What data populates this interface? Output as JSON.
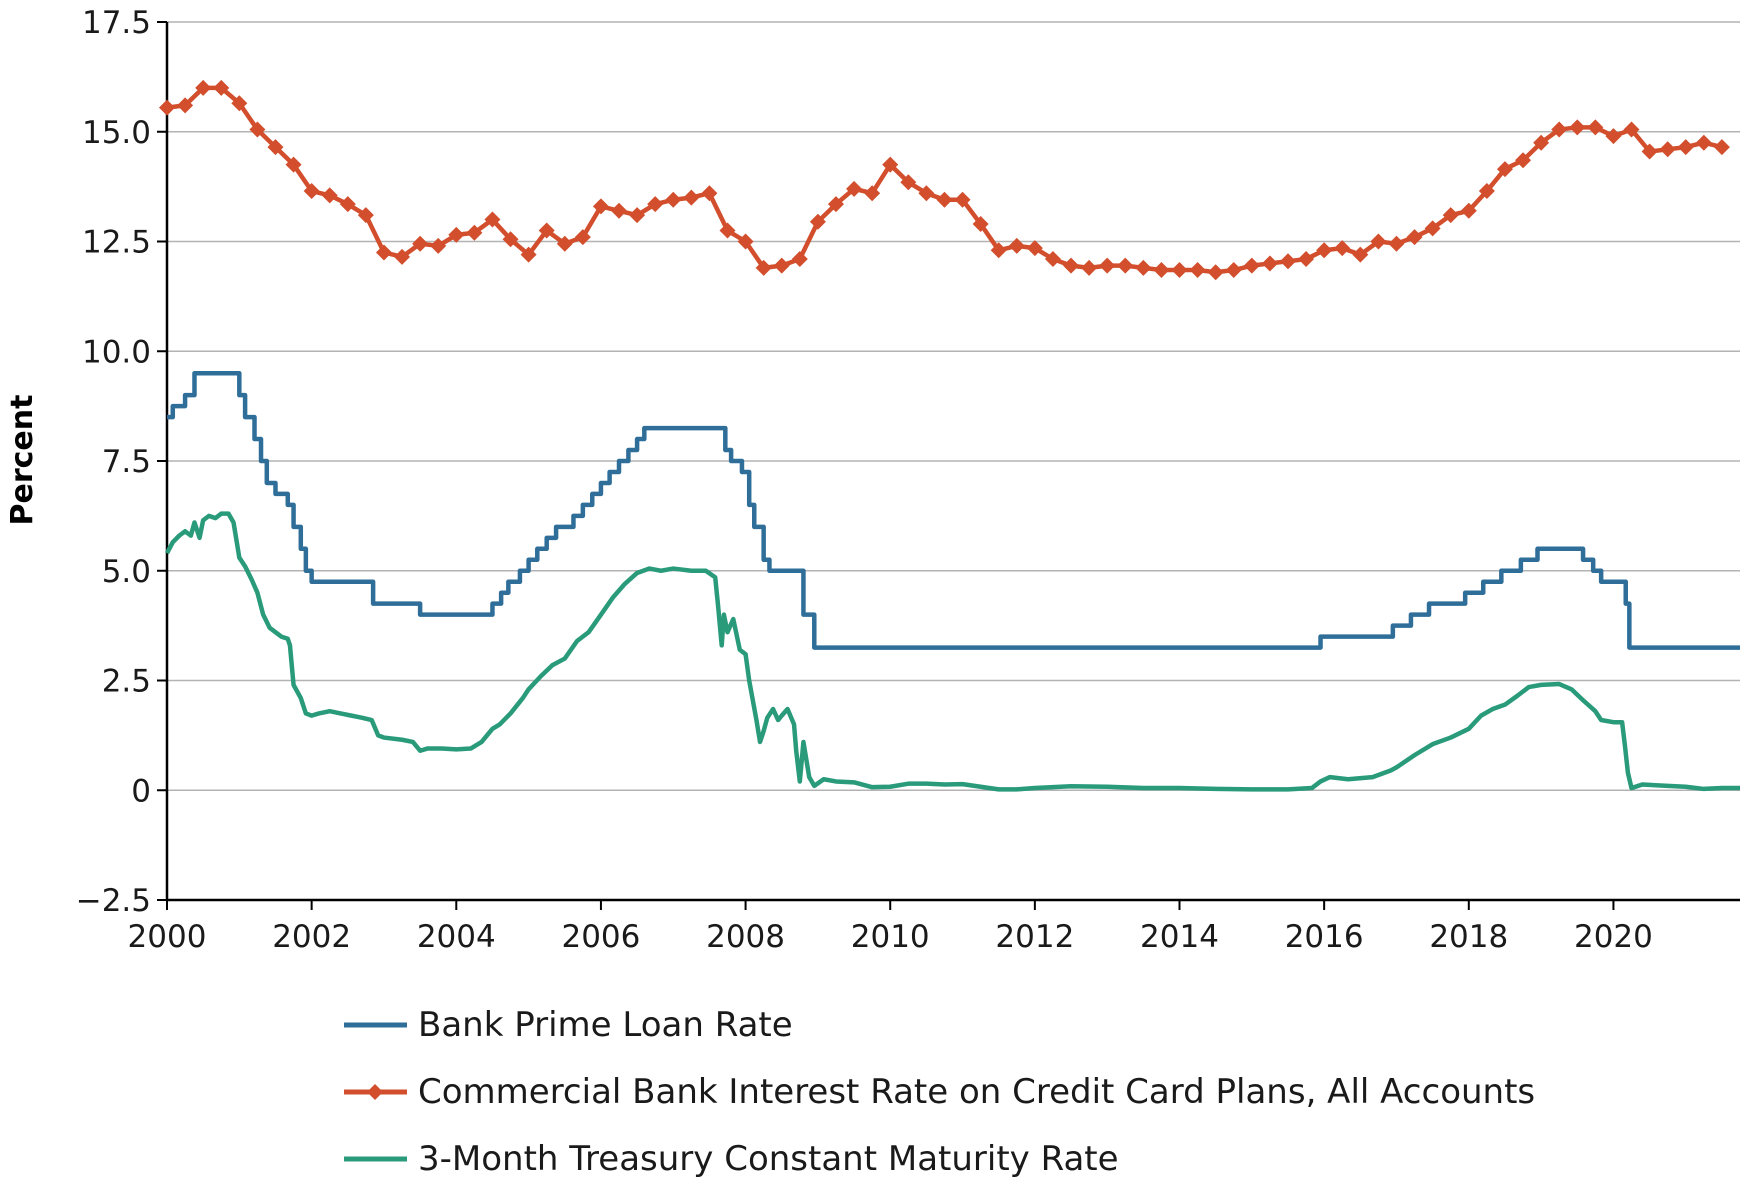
{
  "chart_data": {
    "type": "line",
    "title": "",
    "xlabel": "",
    "ylabel": "Percent",
    "xlim": [
      2000,
      2021.75
    ],
    "ylim": [
      -2.5,
      17.5
    ],
    "grid": "horizontal",
    "legend_position": "bottom",
    "x_ticks": [
      "2000",
      "2002",
      "2004",
      "2006",
      "2008",
      "2010",
      "2012",
      "2014",
      "2016",
      "2018",
      "2020"
    ],
    "y_ticks": [
      "17.5",
      "15.0",
      "12.5",
      "10.0",
      "7.5",
      "5.0",
      "2.5",
      "0",
      "−2.5"
    ],
    "series": [
      {
        "name": "Bank Prime Loan Rate",
        "color": "#2e6e99",
        "style": "step",
        "marker": "none",
        "points": [
          [
            2000.0,
            8.5
          ],
          [
            2000.08,
            8.75
          ],
          [
            2000.25,
            9.0
          ],
          [
            2000.38,
            9.5
          ],
          [
            2001.0,
            9.0
          ],
          [
            2001.08,
            8.5
          ],
          [
            2001.21,
            8.0
          ],
          [
            2001.3,
            7.5
          ],
          [
            2001.38,
            7.0
          ],
          [
            2001.5,
            6.75
          ],
          [
            2001.67,
            6.5
          ],
          [
            2001.75,
            6.0
          ],
          [
            2001.85,
            5.5
          ],
          [
            2001.92,
            5.0
          ],
          [
            2002.0,
            4.75
          ],
          [
            2002.85,
            4.25
          ],
          [
            2003.5,
            4.0
          ],
          [
            2004.5,
            4.25
          ],
          [
            2004.62,
            4.5
          ],
          [
            2004.72,
            4.75
          ],
          [
            2004.88,
            5.0
          ],
          [
            2005.0,
            5.25
          ],
          [
            2005.12,
            5.5
          ],
          [
            2005.25,
            5.75
          ],
          [
            2005.38,
            6.0
          ],
          [
            2005.62,
            6.25
          ],
          [
            2005.75,
            6.5
          ],
          [
            2005.88,
            6.75
          ],
          [
            2006.0,
            7.0
          ],
          [
            2006.12,
            7.25
          ],
          [
            2006.25,
            7.5
          ],
          [
            2006.38,
            7.75
          ],
          [
            2006.5,
            8.0
          ],
          [
            2006.6,
            8.25
          ],
          [
            2007.72,
            7.75
          ],
          [
            2007.8,
            7.5
          ],
          [
            2007.95,
            7.25
          ],
          [
            2008.05,
            6.5
          ],
          [
            2008.12,
            6.0
          ],
          [
            2008.25,
            5.25
          ],
          [
            2008.33,
            5.0
          ],
          [
            2008.8,
            4.0
          ],
          [
            2008.95,
            3.25
          ],
          [
            2015.95,
            3.5
          ],
          [
            2016.95,
            3.75
          ],
          [
            2017.2,
            4.0
          ],
          [
            2017.45,
            4.25
          ],
          [
            2017.95,
            4.5
          ],
          [
            2018.2,
            4.75
          ],
          [
            2018.45,
            5.0
          ],
          [
            2018.72,
            5.25
          ],
          [
            2018.95,
            5.5
          ],
          [
            2019.58,
            5.25
          ],
          [
            2019.72,
            5.0
          ],
          [
            2019.83,
            4.75
          ],
          [
            2020.17,
            4.25
          ],
          [
            2020.22,
            3.25
          ],
          [
            2021.75,
            3.25
          ]
        ]
      },
      {
        "name": "Commercial Bank Interest Rate on Credit Card Plans, All Accounts",
        "color": "#d24e2d",
        "style": "line",
        "marker": "diamond",
        "points": [
          [
            2000.0,
            15.55
          ],
          [
            2000.25,
            15.6
          ],
          [
            2000.5,
            16.0
          ],
          [
            2000.75,
            16.0
          ],
          [
            2001.0,
            15.65
          ],
          [
            2001.25,
            15.05
          ],
          [
            2001.5,
            14.65
          ],
          [
            2001.75,
            14.25
          ],
          [
            2002.0,
            13.65
          ],
          [
            2002.25,
            13.55
          ],
          [
            2002.5,
            13.35
          ],
          [
            2002.75,
            13.1
          ],
          [
            2003.0,
            12.25
          ],
          [
            2003.25,
            12.15
          ],
          [
            2003.5,
            12.45
          ],
          [
            2003.75,
            12.4
          ],
          [
            2004.0,
            12.65
          ],
          [
            2004.25,
            12.7
          ],
          [
            2004.5,
            13.0
          ],
          [
            2004.75,
            12.55
          ],
          [
            2005.0,
            12.2
          ],
          [
            2005.25,
            12.75
          ],
          [
            2005.5,
            12.45
          ],
          [
            2005.75,
            12.6
          ],
          [
            2006.0,
            13.3
          ],
          [
            2006.25,
            13.2
          ],
          [
            2006.5,
            13.1
          ],
          [
            2006.75,
            13.35
          ],
          [
            2007.0,
            13.45
          ],
          [
            2007.25,
            13.5
          ],
          [
            2007.5,
            13.6
          ],
          [
            2007.75,
            12.75
          ],
          [
            2008.0,
            12.5
          ],
          [
            2008.25,
            11.9
          ],
          [
            2008.5,
            11.95
          ],
          [
            2008.75,
            12.1
          ],
          [
            2009.0,
            12.95
          ],
          [
            2009.25,
            13.35
          ],
          [
            2009.5,
            13.7
          ],
          [
            2009.75,
            13.6
          ],
          [
            2010.0,
            14.25
          ],
          [
            2010.25,
            13.85
          ],
          [
            2010.5,
            13.6
          ],
          [
            2010.75,
            13.45
          ],
          [
            2011.0,
            13.45
          ],
          [
            2011.25,
            12.9
          ],
          [
            2011.5,
            12.3
          ],
          [
            2011.75,
            12.4
          ],
          [
            2012.0,
            12.35
          ],
          [
            2012.25,
            12.1
          ],
          [
            2012.5,
            11.95
          ],
          [
            2012.75,
            11.9
          ],
          [
            2013.0,
            11.95
          ],
          [
            2013.25,
            11.95
          ],
          [
            2013.5,
            11.9
          ],
          [
            2013.75,
            11.85
          ],
          [
            2014.0,
            11.85
          ],
          [
            2014.25,
            11.85
          ],
          [
            2014.5,
            11.8
          ],
          [
            2014.75,
            11.85
          ],
          [
            2015.0,
            11.95
          ],
          [
            2015.25,
            12.0
          ],
          [
            2015.5,
            12.05
          ],
          [
            2015.75,
            12.1
          ],
          [
            2016.0,
            12.3
          ],
          [
            2016.25,
            12.35
          ],
          [
            2016.5,
            12.2
          ],
          [
            2016.75,
            12.5
          ],
          [
            2017.0,
            12.45
          ],
          [
            2017.25,
            12.6
          ],
          [
            2017.5,
            12.8
          ],
          [
            2017.75,
            13.1
          ],
          [
            2018.0,
            13.2
          ],
          [
            2018.25,
            13.65
          ],
          [
            2018.5,
            14.15
          ],
          [
            2018.75,
            14.35
          ],
          [
            2019.0,
            14.75
          ],
          [
            2019.25,
            15.05
          ],
          [
            2019.5,
            15.1
          ],
          [
            2019.75,
            15.1
          ],
          [
            2020.0,
            14.9
          ],
          [
            2020.25,
            15.05
          ],
          [
            2020.5,
            14.55
          ],
          [
            2020.75,
            14.6
          ],
          [
            2021.0,
            14.65
          ],
          [
            2021.25,
            14.75
          ],
          [
            2021.5,
            14.65
          ]
        ]
      },
      {
        "name": "3-Month Treasury Constant Maturity Rate",
        "color": "#2a9b7a",
        "style": "line",
        "marker": "none",
        "points": [
          [
            2000.0,
            5.4
          ],
          [
            2000.08,
            5.65
          ],
          [
            2000.17,
            5.8
          ],
          [
            2000.25,
            5.9
          ],
          [
            2000.33,
            5.8
          ],
          [
            2000.38,
            6.1
          ],
          [
            2000.45,
            5.75
          ],
          [
            2000.5,
            6.15
          ],
          [
            2000.58,
            6.25
          ],
          [
            2000.67,
            6.2
          ],
          [
            2000.75,
            6.3
          ],
          [
            2000.85,
            6.3
          ],
          [
            2000.92,
            6.1
          ],
          [
            2001.0,
            5.3
          ],
          [
            2001.08,
            5.1
          ],
          [
            2001.17,
            4.8
          ],
          [
            2001.25,
            4.5
          ],
          [
            2001.33,
            4.0
          ],
          [
            2001.42,
            3.7
          ],
          [
            2001.5,
            3.6
          ],
          [
            2001.58,
            3.5
          ],
          [
            2001.67,
            3.45
          ],
          [
            2001.7,
            3.3
          ],
          [
            2001.75,
            2.4
          ],
          [
            2001.85,
            2.1
          ],
          [
            2001.92,
            1.75
          ],
          [
            2002.0,
            1.7
          ],
          [
            2002.1,
            1.75
          ],
          [
            2002.25,
            1.8
          ],
          [
            2002.4,
            1.75
          ],
          [
            2002.55,
            1.7
          ],
          [
            2002.7,
            1.65
          ],
          [
            2002.83,
            1.6
          ],
          [
            2002.92,
            1.25
          ],
          [
            2003.0,
            1.2
          ],
          [
            2003.25,
            1.15
          ],
          [
            2003.4,
            1.1
          ],
          [
            2003.5,
            0.9
          ],
          [
            2003.6,
            0.95
          ],
          [
            2003.8,
            0.95
          ],
          [
            2004.0,
            0.93
          ],
          [
            2004.2,
            0.95
          ],
          [
            2004.35,
            1.1
          ],
          [
            2004.5,
            1.4
          ],
          [
            2004.6,
            1.5
          ],
          [
            2004.75,
            1.75
          ],
          [
            2004.92,
            2.1
          ],
          [
            2005.0,
            2.3
          ],
          [
            2005.17,
            2.6
          ],
          [
            2005.33,
            2.85
          ],
          [
            2005.5,
            3.0
          ],
          [
            2005.67,
            3.4
          ],
          [
            2005.83,
            3.6
          ],
          [
            2006.0,
            4.0
          ],
          [
            2006.17,
            4.4
          ],
          [
            2006.33,
            4.7
          ],
          [
            2006.5,
            4.95
          ],
          [
            2006.67,
            5.05
          ],
          [
            2006.83,
            5.0
          ],
          [
            2007.0,
            5.05
          ],
          [
            2007.25,
            5.0
          ],
          [
            2007.45,
            5.0
          ],
          [
            2007.58,
            4.85
          ],
          [
            2007.62,
            4.2
          ],
          [
            2007.67,
            3.3
          ],
          [
            2007.7,
            4.0
          ],
          [
            2007.75,
            3.6
          ],
          [
            2007.83,
            3.9
          ],
          [
            2007.92,
            3.2
          ],
          [
            2008.0,
            3.1
          ],
          [
            2008.05,
            2.5
          ],
          [
            2008.15,
            1.6
          ],
          [
            2008.2,
            1.1
          ],
          [
            2008.25,
            1.35
          ],
          [
            2008.3,
            1.65
          ],
          [
            2008.38,
            1.85
          ],
          [
            2008.45,
            1.6
          ],
          [
            2008.5,
            1.7
          ],
          [
            2008.58,
            1.85
          ],
          [
            2008.67,
            1.5
          ],
          [
            2008.7,
            0.9
          ],
          [
            2008.75,
            0.2
          ],
          [
            2008.8,
            1.1
          ],
          [
            2008.88,
            0.3
          ],
          [
            2008.95,
            0.1
          ],
          [
            2009.08,
            0.25
          ],
          [
            2009.25,
            0.2
          ],
          [
            2009.5,
            0.18
          ],
          [
            2009.75,
            0.07
          ],
          [
            2010.0,
            0.08
          ],
          [
            2010.25,
            0.15
          ],
          [
            2010.5,
            0.15
          ],
          [
            2010.75,
            0.13
          ],
          [
            2011.0,
            0.14
          ],
          [
            2011.25,
            0.08
          ],
          [
            2011.5,
            0.02
          ],
          [
            2011.75,
            0.02
          ],
          [
            2012.0,
            0.05
          ],
          [
            2012.5,
            0.09
          ],
          [
            2013.0,
            0.08
          ],
          [
            2013.5,
            0.05
          ],
          [
            2014.0,
            0.05
          ],
          [
            2014.5,
            0.03
          ],
          [
            2015.0,
            0.02
          ],
          [
            2015.5,
            0.02
          ],
          [
            2015.83,
            0.05
          ],
          [
            2015.95,
            0.2
          ],
          [
            2016.08,
            0.3
          ],
          [
            2016.33,
            0.25
          ],
          [
            2016.67,
            0.3
          ],
          [
            2016.92,
            0.45
          ],
          [
            2017.0,
            0.52
          ],
          [
            2017.25,
            0.8
          ],
          [
            2017.5,
            1.05
          ],
          [
            2017.75,
            1.2
          ],
          [
            2018.0,
            1.4
          ],
          [
            2018.17,
            1.7
          ],
          [
            2018.33,
            1.85
          ],
          [
            2018.5,
            1.95
          ],
          [
            2018.67,
            2.15
          ],
          [
            2018.83,
            2.35
          ],
          [
            2019.0,
            2.4
          ],
          [
            2019.25,
            2.42
          ],
          [
            2019.42,
            2.3
          ],
          [
            2019.58,
            2.05
          ],
          [
            2019.75,
            1.8
          ],
          [
            2019.83,
            1.6
          ],
          [
            2020.0,
            1.55
          ],
          [
            2020.12,
            1.55
          ],
          [
            2020.16,
            1.0
          ],
          [
            2020.2,
            0.4
          ],
          [
            2020.25,
            0.05
          ],
          [
            2020.4,
            0.13
          ],
          [
            2020.75,
            0.1
          ],
          [
            2021.0,
            0.08
          ],
          [
            2021.25,
            0.03
          ],
          [
            2021.5,
            0.05
          ],
          [
            2021.75,
            0.05
          ]
        ]
      }
    ]
  }
}
